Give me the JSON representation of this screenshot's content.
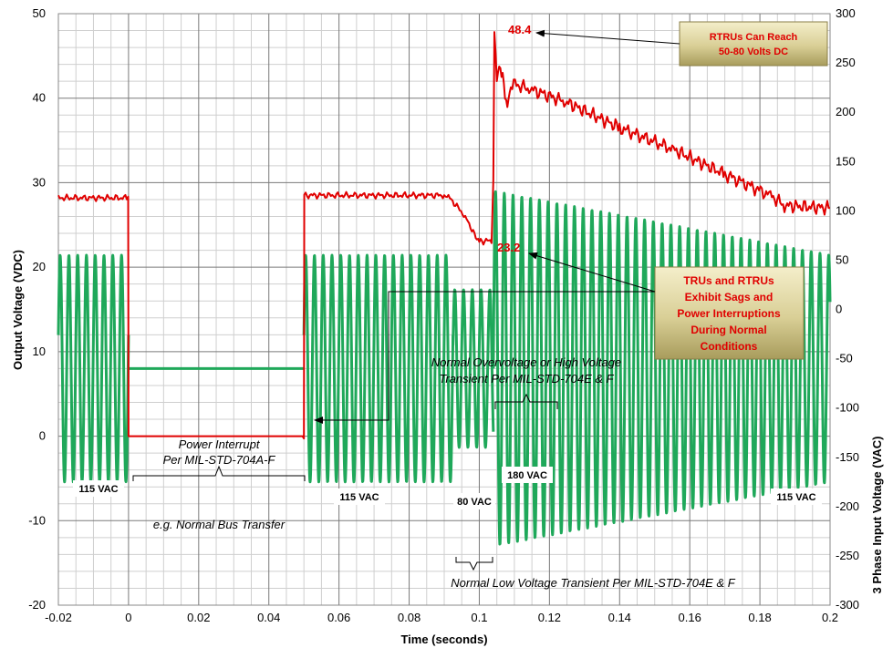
{
  "chart_data": {
    "type": "line",
    "xlabel": "Time (seconds)",
    "ylabel_left": "Output Voltage (VDC)",
    "ylabel_right": "3 Phase Input Voltage (VAC)",
    "xlim": [
      -0.02,
      0.2
    ],
    "ylim_left": [
      -20,
      50
    ],
    "ylim_right": [
      -300,
      300
    ],
    "x_ticks": [
      "-0.02",
      "0",
      "0.02",
      "0.04",
      "0.06",
      "0.08",
      "0.1",
      "0.12",
      "0.14",
      "0.16",
      "0.18",
      "0.2"
    ],
    "y_left_ticks": [
      "-20",
      "-10",
      "0",
      "10",
      "20",
      "30",
      "40",
      "50"
    ],
    "y_right_ticks": [
      "-300",
      "-250",
      "-200",
      "-150",
      "-100",
      "-50",
      "0",
      "50",
      "100",
      "150",
      "200",
      "250",
      "300"
    ],
    "grid": true,
    "series": [
      {
        "color": "#e00000",
        "axis": "left",
        "points": [
          [
            -0.02,
            28.2
          ],
          [
            -0.0001,
            28.2
          ],
          [
            0,
            0
          ],
          [
            0.05,
            0
          ],
          [
            0.0501,
            28.5
          ],
          [
            0.09,
            28.5
          ],
          [
            0.092,
            28.0
          ],
          [
            0.096,
            26.0
          ],
          [
            0.099,
            23.5
          ],
          [
            0.1,
            23.0
          ],
          [
            0.1035,
            23.2
          ],
          [
            0.104,
            30.0
          ],
          [
            0.1043,
            48.4
          ],
          [
            0.105,
            42.5
          ],
          [
            0.106,
            44.0
          ],
          [
            0.107,
            41.5
          ],
          [
            0.108,
            39.0
          ],
          [
            0.109,
            41.8
          ],
          [
            0.115,
            41.0
          ],
          [
            0.125,
            39.5
          ],
          [
            0.14,
            36.5
          ],
          [
            0.155,
            34.0
          ],
          [
            0.17,
            31.0
          ],
          [
            0.183,
            28.5
          ],
          [
            0.187,
            27.3
          ],
          [
            0.2,
            27.0
          ]
        ]
      },
      {
        "color": "#1fa85a",
        "axis": "right",
        "segments": [
          {
            "x": [
              -0.02,
              0
            ],
            "amplitude": 115
          },
          {
            "x": [
              0,
              0.05
            ],
            "amplitude": 0
          },
          {
            "x": [
              0.05,
              0.0925
            ],
            "amplitude": 115
          },
          {
            "x": [
              0.0925,
              0.104
            ],
            "amplitude": 80
          },
          {
            "x": [
              0.104,
              0.2
            ],
            "amplitude_start": 180,
            "amplitude_end": 115
          }
        ]
      }
    ],
    "annotations": {
      "peak_label": "48.4",
      "sag_label": "23.2",
      "callout_top": [
        "RTRUs Can Reach",
        "50-80 Volts DC"
      ],
      "callout_mid": [
        "TRUs and RTRUs",
        "Exhibit Sags and",
        "Power Interruptions",
        "During Normal",
        "Conditions"
      ],
      "interrupt_note": [
        "Power Interrupt",
        "Per MIL-STD-704A-F"
      ],
      "bus_transfer_note": "e.g. Normal Bus Transfer",
      "overvoltage_note": [
        "Normal Overvoltage or High Voltage",
        "Transient Per MIL-STD-704E & F"
      ],
      "low_voltage_note": "Normal Low Voltage Transient Per MIL-STD-704E & F",
      "vac_labels": [
        "115 VAC",
        "115 VAC",
        "80 VAC",
        "180 VAC",
        "115 VAC"
      ]
    }
  }
}
